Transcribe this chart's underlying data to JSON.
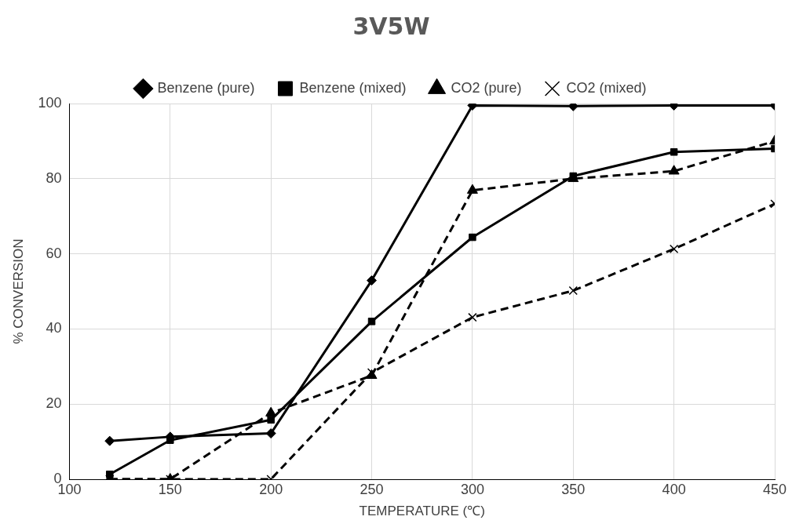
{
  "chart_data": {
    "type": "line",
    "title": "3V5W",
    "xlabel": "TEMPERATURE (℃)",
    "ylabel": "% CONVERSION",
    "x": [
      120,
      150,
      200,
      250,
      300,
      350,
      400,
      450
    ],
    "series": [
      {
        "name": "Benzene (pure)",
        "color": "#000000",
        "marker": "diamond",
        "line_style": "solid",
        "values": [
          10.2,
          11.3,
          12.2,
          52.9,
          99.5,
          99.3,
          99.5,
          99.5
        ]
      },
      {
        "name": "Benzene (mixed)",
        "color": "#000000",
        "marker": "square",
        "line_style": "solid",
        "values": [
          1.3,
          10.4,
          15.8,
          42,
          64.4,
          80.7,
          87.1,
          88
        ]
      },
      {
        "name": "CO2 (pure)",
        "color": "#000000",
        "marker": "triangle",
        "line_style": "dashed",
        "values": [
          0,
          0,
          17.6,
          27.6,
          76.9,
          80,
          82,
          90
        ]
      },
      {
        "name": "CO2 (mixed)",
        "color": "#000000",
        "marker": "cross",
        "line_style": "dashed",
        "values": [
          0,
          0,
          0,
          28.4,
          43.1,
          50.2,
          61.3,
          73.3
        ]
      }
    ],
    "xlim": [
      100,
      450
    ],
    "xticks": [
      100,
      150,
      200,
      250,
      300,
      350,
      400,
      450
    ],
    "ylim": [
      0,
      100
    ],
    "yticks": [
      0,
      20,
      40,
      60,
      80,
      100
    ],
    "grid": true,
    "legend": "top"
  }
}
